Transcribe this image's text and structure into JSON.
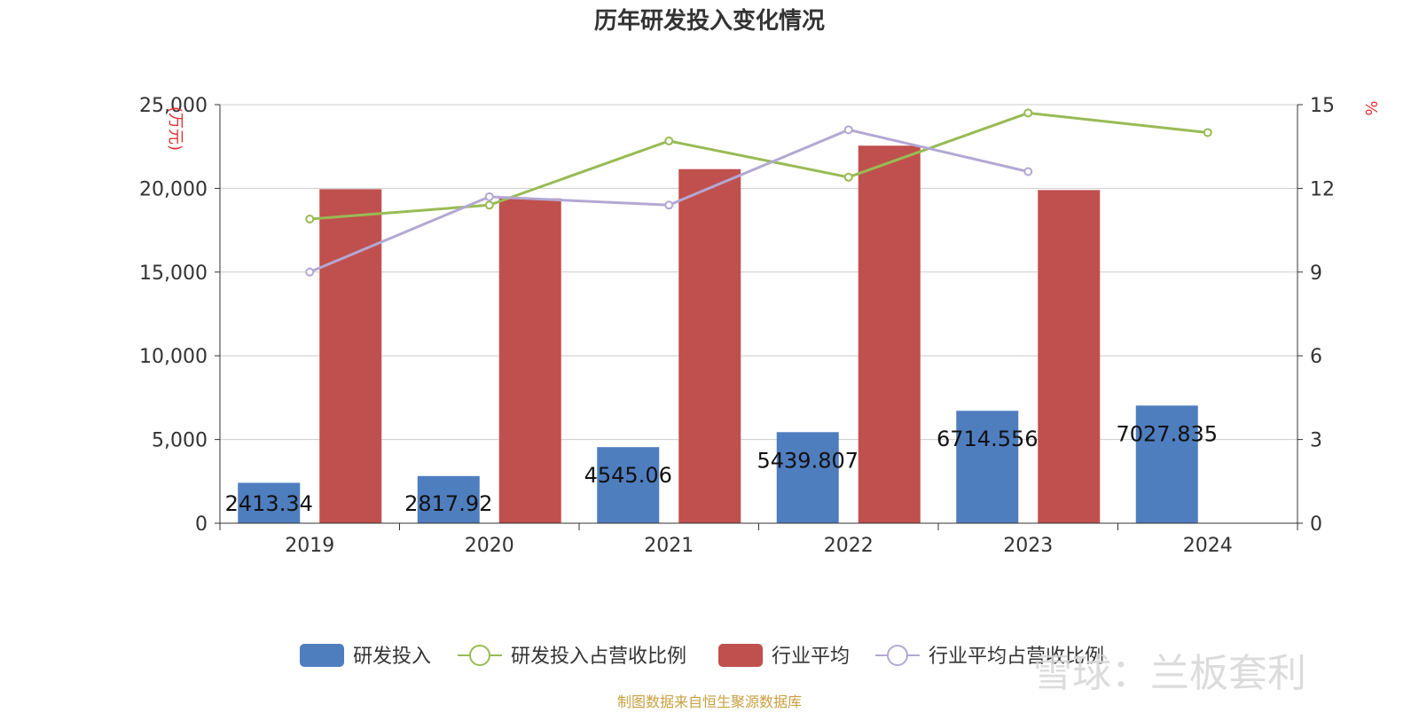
{
  "chart_data": {
    "type": "bar",
    "title": "历年研发投入变化情况",
    "categories": [
      "2019",
      "2020",
      "2021",
      "2022",
      "2023",
      "2024"
    ],
    "left_axis": {
      "unit_label": "(万元)",
      "ylim": [
        0,
        25000
      ],
      "ticks": [
        "0",
        "5,000",
        "10,000",
        "15,000",
        "20,000",
        "25,000"
      ],
      "tick_values": [
        0,
        5000,
        10000,
        15000,
        20000,
        25000
      ]
    },
    "right_axis": {
      "unit_label": "%",
      "ylim": [
        0,
        15
      ],
      "ticks": [
        "0",
        "3",
        "6",
        "9",
        "12",
        "15"
      ],
      "tick_values": [
        0,
        3,
        6,
        9,
        12,
        15
      ]
    },
    "grid": true,
    "legend_position": "bottom",
    "series": [
      {
        "name": "研发投入",
        "kind": "bar",
        "axis": "left",
        "color": "#4f7ebf",
        "values": [
          2413.34,
          2817.92,
          4545.06,
          5439.807,
          6714.556,
          7027.835
        ],
        "labels": [
          "2413.34",
          "2817.92",
          "4545.06",
          "5439.807",
          "6714.556",
          "7027.835"
        ]
      },
      {
        "name": "研发投入占营收比例",
        "kind": "line",
        "axis": "right",
        "color": "#98bb55",
        "values": [
          10.9,
          11.4,
          13.7,
          12.4,
          14.7,
          14.0
        ]
      },
      {
        "name": "行业平均",
        "kind": "bar",
        "axis": "left",
        "color": "#c0504d",
        "values": [
          19950,
          19400,
          21150,
          22550,
          19900,
          null
        ]
      },
      {
        "name": "行业平均占营收比例",
        "kind": "line",
        "axis": "right",
        "color": "#b3a8d3",
        "values": [
          9.0,
          11.7,
          11.4,
          14.1,
          12.6,
          null
        ]
      }
    ]
  },
  "source_note": "制图数据来自恒生聚源数据库",
  "watermark": "雪球：兰板套利"
}
